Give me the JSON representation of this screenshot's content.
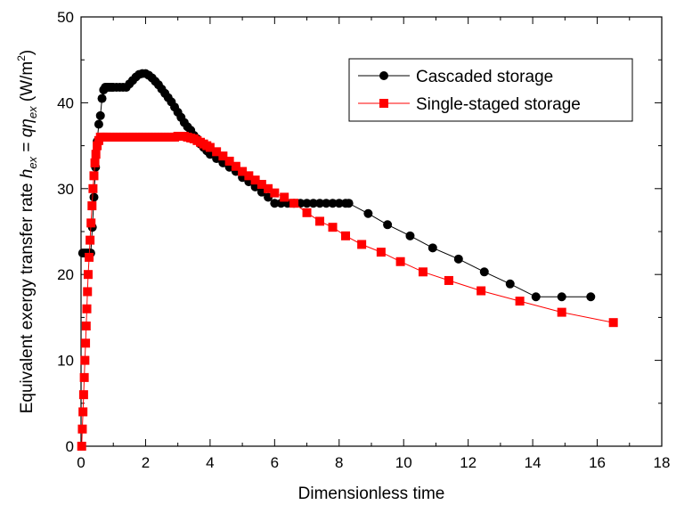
{
  "chart_data": {
    "type": "line",
    "title": "",
    "xlabel": "Dimensionless time",
    "ylabel": {
      "prefix": "Equivalent exergy transfer rate ",
      "h": "h",
      "h_sub": "ex",
      "eq": " = ",
      "q": "q",
      "eta": "η",
      "eta_sub": "ex",
      "unit_open": " (W/m",
      "unit_sup": "2",
      "unit_close": ")"
    },
    "xlim": [
      0,
      18
    ],
    "ylim": [
      0,
      50
    ],
    "xticks": [
      0,
      2,
      4,
      6,
      8,
      10,
      12,
      14,
      16,
      18
    ],
    "yticks": [
      0,
      10,
      20,
      30,
      40,
      50
    ],
    "grid": false,
    "legend_position": "top-right",
    "series": [
      {
        "name": "Cascaded storage",
        "color": "#000000",
        "marker": "circle",
        "x": [
          0.05,
          0.1,
          0.15,
          0.2,
          0.25,
          0.3,
          0.35,
          0.4,
          0.45,
          0.5,
          0.55,
          0.6,
          0.65,
          0.7,
          0.75,
          0.8,
          0.85,
          0.9,
          0.95,
          1.0,
          1.1,
          1.2,
          1.3,
          1.4,
          1.5,
          1.6,
          1.7,
          1.8,
          1.9,
          2.0,
          2.1,
          2.2,
          2.3,
          2.4,
          2.5,
          2.6,
          2.7,
          2.8,
          2.9,
          3.0,
          3.1,
          3.2,
          3.3,
          3.4,
          3.5,
          3.6,
          3.7,
          3.8,
          3.9,
          4.0,
          4.2,
          4.4,
          4.6,
          4.8,
          5.0,
          5.2,
          5.4,
          5.6,
          5.8,
          6.0,
          6.2,
          6.4,
          6.6,
          6.8,
          7.0,
          7.2,
          7.4,
          7.6,
          7.8,
          8.0,
          8.2,
          8.3,
          8.9,
          9.5,
          10.2,
          10.9,
          11.7,
          12.5,
          13.3,
          14.1,
          14.9,
          15.8
        ],
        "y": [
          22.5,
          22.5,
          22.5,
          22.5,
          22.5,
          22.5,
          25.5,
          29.0,
          32.5,
          35.5,
          37.5,
          38.5,
          40.5,
          41.5,
          41.8,
          41.8,
          41.8,
          41.8,
          41.8,
          41.8,
          41.8,
          41.8,
          41.8,
          41.8,
          42.2,
          42.6,
          43.0,
          43.3,
          43.4,
          43.4,
          43.2,
          42.9,
          42.5,
          42.1,
          41.6,
          41.1,
          40.6,
          40.1,
          39.5,
          38.9,
          38.3,
          37.7,
          37.2,
          36.8,
          36.2,
          35.8,
          35.2,
          34.8,
          34.4,
          34.0,
          33.5,
          33.0,
          32.5,
          32.0,
          31.3,
          30.8,
          30.2,
          29.6,
          29.0,
          28.3,
          28.3,
          28.3,
          28.3,
          28.3,
          28.3,
          28.3,
          28.3,
          28.3,
          28.3,
          28.3,
          28.3,
          28.3,
          27.1,
          25.8,
          24.5,
          23.1,
          21.8,
          20.3,
          18.9,
          17.4,
          17.4,
          17.4
        ]
      },
      {
        "name": "Single-staged storage",
        "color": "#ff0000",
        "marker": "square",
        "x": [
          0.02,
          0.04,
          0.06,
          0.08,
          0.1,
          0.12,
          0.14,
          0.16,
          0.18,
          0.2,
          0.22,
          0.25,
          0.28,
          0.31,
          0.34,
          0.37,
          0.4,
          0.43,
          0.46,
          0.5,
          0.55,
          0.6,
          0.65,
          0.7,
          0.75,
          0.8,
          0.9,
          1.0,
          1.1,
          1.2,
          1.3,
          1.4,
          1.5,
          1.6,
          1.7,
          1.8,
          1.9,
          2.0,
          2.1,
          2.2,
          2.3,
          2.4,
          2.5,
          2.6,
          2.7,
          2.8,
          2.9,
          3.0,
          3.1,
          3.2,
          3.3,
          3.4,
          3.5,
          3.6,
          3.7,
          3.8,
          3.9,
          4.0,
          4.2,
          4.4,
          4.6,
          4.8,
          5.0,
          5.2,
          5.4,
          5.6,
          5.8,
          6.0,
          6.3,
          6.6,
          7.0,
          7.4,
          7.8,
          8.2,
          8.7,
          9.3,
          9.9,
          10.6,
          11.4,
          12.4,
          13.6,
          14.9,
          16.5
        ],
        "y": [
          0.0,
          2.0,
          4.0,
          6.0,
          8.0,
          10.0,
          12.0,
          14.0,
          16.0,
          18.0,
          20.0,
          22.0,
          24.0,
          26.0,
          28.0,
          30.0,
          31.5,
          33.0,
          34.0,
          35.0,
          35.6,
          36.0,
          36.0,
          36.0,
          36.0,
          36.0,
          36.0,
          36.0,
          36.0,
          36.0,
          36.0,
          36.0,
          36.0,
          36.0,
          36.0,
          36.0,
          36.0,
          36.0,
          36.0,
          36.0,
          36.0,
          36.0,
          36.0,
          36.0,
          36.0,
          36.0,
          36.0,
          36.1,
          36.1,
          36.1,
          36.0,
          35.9,
          35.8,
          35.6,
          35.4,
          35.2,
          35.0,
          34.8,
          34.3,
          33.8,
          33.2,
          32.6,
          32.0,
          31.5,
          31.0,
          30.5,
          30.0,
          29.5,
          29.0,
          28.3,
          27.2,
          26.2,
          25.5,
          24.5,
          23.5,
          22.6,
          21.5,
          20.3,
          19.3,
          18.1,
          16.9,
          15.6,
          14.4
        ]
      }
    ]
  }
}
